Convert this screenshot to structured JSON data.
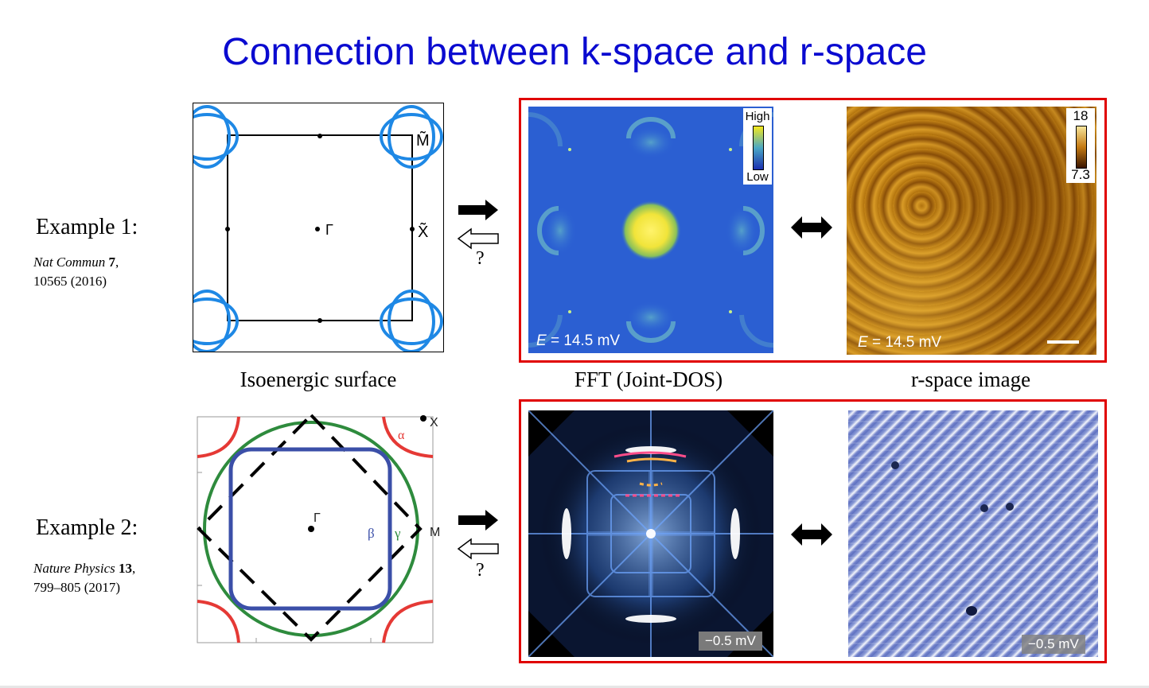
{
  "title": "Connection between k-space and r-space",
  "captions": {
    "isoenergetic": "Isoenergic surface",
    "fft": "FFT (Joint-DOS)",
    "rspace": "r-space image"
  },
  "example1": {
    "label": "Example 1:",
    "ref_journal": "Nat Commun",
    "ref_volume": "7",
    "ref_rest": "10565 (2016)",
    "bz_labels": {
      "gamma": "Γ",
      "x": "X̃",
      "m": "M̃"
    },
    "question": "?",
    "fft_colorbar": {
      "high": "High",
      "low": "Low"
    },
    "fft_energy_var": "E",
    "fft_energy_value": " = 14.5 mV",
    "rspace_colorbar": {
      "max": "18",
      "min": "7.3"
    },
    "rspace_energy_var": "E",
    "rspace_energy_value": " = 14.5 mV"
  },
  "example2": {
    "label": "Example 2:",
    "ref_journal": "Nature Physics",
    "ref_volume": "13",
    "ref_rest": "799–805 (2017)",
    "bz_labels": {
      "gamma": "Γ",
      "x": "X",
      "m": "M",
      "alpha": "α",
      "beta": "β",
      "gamma_band": "γ"
    },
    "question": "?",
    "fft_energy": "−0.5 mV",
    "rspace_energy": "−0.5 mV"
  },
  "colors": {
    "title": "#0a0ad0",
    "frame": "#e00000",
    "fermi_blue": "#1e88e5",
    "alpha_band": "#e53935",
    "beta_band": "#3b4fa8",
    "gamma_band": "#2e8b3d"
  }
}
